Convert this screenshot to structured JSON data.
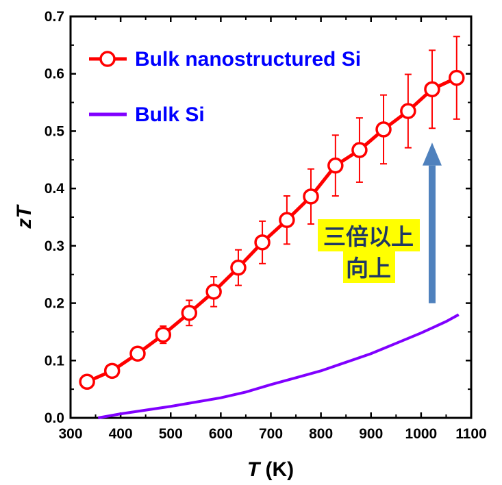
{
  "chart_data": {
    "type": "line",
    "xlabel": "T (K)",
    "xlabel_italic": "T",
    "xlabel_unit": " (K)",
    "ylabel": "zT",
    "xlim": [
      300,
      1100
    ],
    "ylim": [
      0,
      0.7
    ],
    "xticks": [
      300,
      400,
      500,
      600,
      700,
      800,
      900,
      1000,
      1100
    ],
    "yticks": [
      "0.0",
      "0.1",
      "0.2",
      "0.3",
      "0.4",
      "0.5",
      "0.6",
      "0.7"
    ],
    "grid": false,
    "legend_placement": "top-left",
    "series": [
      {
        "name": "Bulk nanostructured Si",
        "color": "#ff0000",
        "marker": "open-circle",
        "x": [
          333,
          383,
          434,
          485,
          537,
          586,
          635,
          683,
          732,
          780,
          829,
          877,
          925,
          974,
          1022,
          1071
        ],
        "y": [
          0.063,
          0.082,
          0.112,
          0.145,
          0.183,
          0.22,
          0.262,
          0.306,
          0.345,
          0.386,
          0.44,
          0.467,
          0.503,
          0.535,
          0.573,
          0.593
        ],
        "err": [
          0.005,
          0.005,
          0.008,
          0.015,
          0.022,
          0.026,
          0.031,
          0.037,
          0.042,
          0.048,
          0.053,
          0.056,
          0.06,
          0.064,
          0.068,
          0.072
        ]
      },
      {
        "name": "Bulk Si",
        "color": "#8000ff",
        "x": [
          355,
          400,
          500,
          600,
          650,
          700,
          750,
          800,
          850,
          900,
          950,
          1000,
          1050,
          1075
        ],
        "y": [
          0,
          0.007,
          0.02,
          0.035,
          0.045,
          0.058,
          0.07,
          0.082,
          0.097,
          0.112,
          0.13,
          0.148,
          0.168,
          0.18
        ]
      }
    ],
    "annotation": {
      "line1": "三倍以上",
      "line2": "向上",
      "bg": "#ffff00",
      "text_color": "#1f3864",
      "arrow_color": "#4f81bd",
      "arrow_from": [
        1022,
        0.2
      ],
      "arrow_to": [
        1022,
        0.48
      ]
    },
    "legend_text_color": "#0000ff"
  }
}
